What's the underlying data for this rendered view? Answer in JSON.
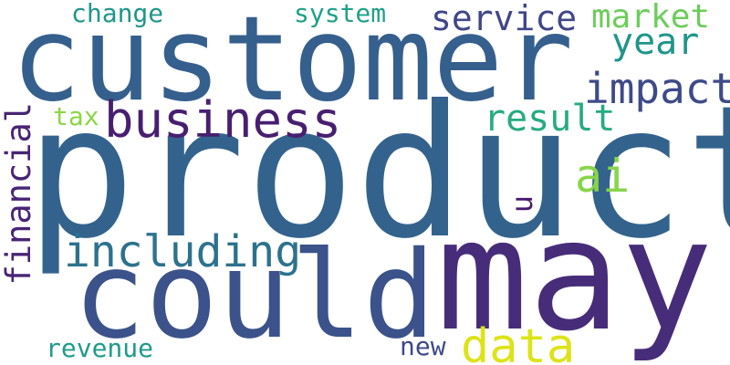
{
  "words": [
    {
      "key": "product",
      "text": "product",
      "color": "#33638d"
    },
    {
      "key": "customer",
      "text": "customer",
      "color": "#355f8d"
    },
    {
      "key": "may",
      "text": "may",
      "color": "#472c7a"
    },
    {
      "key": "could",
      "text": "could",
      "color": "#3b528b"
    },
    {
      "key": "business",
      "text": "business",
      "color": "#481f70"
    },
    {
      "key": "impact",
      "text": "impact",
      "color": "#3e4a89"
    },
    {
      "key": "including",
      "text": "including",
      "color": "#2c728e"
    },
    {
      "key": "data",
      "text": "data",
      "color": "#dde318"
    },
    {
      "key": "service",
      "text": "service",
      "color": "#404688"
    },
    {
      "key": "market",
      "text": "market",
      "color": "#6ccd5a"
    },
    {
      "key": "year",
      "text": "year",
      "color": "#1f958b"
    },
    {
      "key": "result",
      "text": "result",
      "color": "#25ab82"
    },
    {
      "key": "ai",
      "text": "ai",
      "color": "#86d549"
    },
    {
      "key": "financial",
      "text": "financial",
      "color": "#482475"
    },
    {
      "key": "system",
      "text": "system",
      "color": "#1fa188"
    },
    {
      "key": "change",
      "text": "change",
      "color": "#1f968b"
    },
    {
      "key": "tax",
      "text": "tax",
      "color": "#8bd646"
    },
    {
      "key": "revenue",
      "text": "revenue",
      "color": "#1e9b8a"
    },
    {
      "key": "new",
      "text": "new",
      "color": "#3e4989"
    },
    {
      "key": "u",
      "text": "u",
      "color": "#481b6d"
    }
  ]
}
